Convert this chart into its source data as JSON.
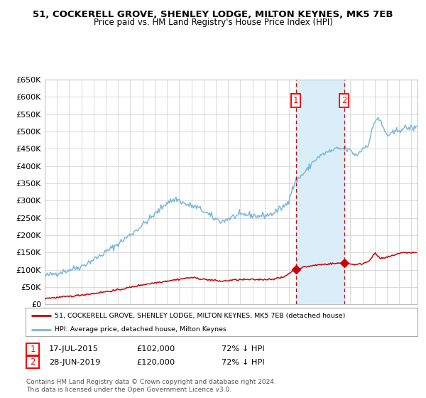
{
  "title1": "51, COCKERELL GROVE, SHENLEY LODGE, MILTON KEYNES, MK5 7EB",
  "title2": "Price paid vs. HM Land Registry's House Price Index (HPI)",
  "background_color": "#ffffff",
  "plot_bg_color": "#ffffff",
  "grid_color": "#cccccc",
  "hpi_line_color": "#7ab8d9",
  "hpi_fill_color": "#d6eaf8",
  "price_color": "#cc0000",
  "span_color": "#daeefa",
  "purchase1_date_num": 2015.54,
  "purchase1_price": 102000,
  "purchase2_date_num": 2019.49,
  "purchase2_price": 120000,
  "legend_label_red": "51, COCKERELL GROVE, SHENLEY LODGE, MILTON KEYNES, MK5 7EB (detached house)",
  "legend_label_blue": "HPI: Average price, detached house, Milton Keynes",
  "table_row1": [
    "1",
    "17-JUL-2015",
    "£102,000",
    "72% ↓ HPI"
  ],
  "table_row2": [
    "2",
    "28-JUN-2019",
    "£120,000",
    "72% ↓ HPI"
  ],
  "footer": "Contains HM Land Registry data © Crown copyright and database right 2024.\nThis data is licensed under the Open Government Licence v3.0.",
  "ylim": [
    0,
    650000
  ],
  "xlim_start": 1995.0,
  "xlim_end": 2025.5
}
